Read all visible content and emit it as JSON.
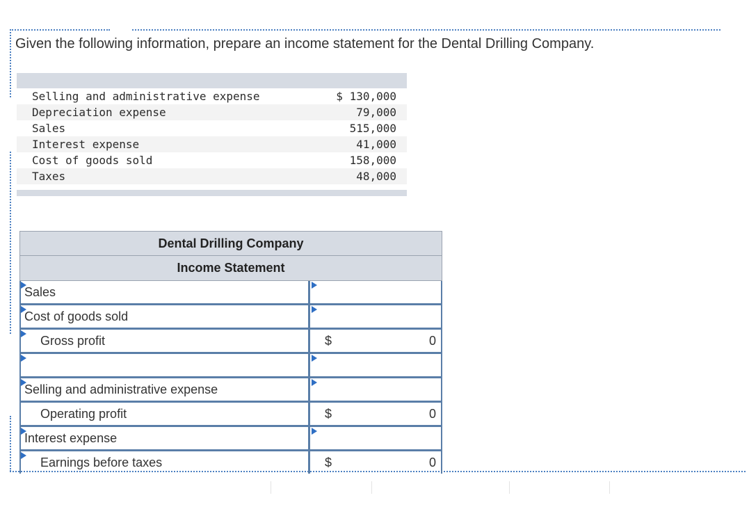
{
  "prompt": "Given the following information, prepare an income statement for the Dental Drilling Company.",
  "given_items": [
    {
      "label": "Selling and administrative expense",
      "value": "$ 130,000"
    },
    {
      "label": "Depreciation expense",
      "value": "79,000"
    },
    {
      "label": "Sales",
      "value": "515,000"
    },
    {
      "label": "Interest expense",
      "value": "41,000"
    },
    {
      "label": "Cost of goods sold",
      "value": "158,000"
    },
    {
      "label": "Taxes",
      "value": "48,000"
    }
  ],
  "statement": {
    "company": "Dental Drilling Company",
    "title": "Income Statement",
    "rows": [
      {
        "label": "Sales",
        "dollar": "",
        "value": ""
      },
      {
        "label": "Cost of goods sold",
        "dollar": "",
        "value": ""
      },
      {
        "label": "Gross profit",
        "dollar": "$",
        "value": "0"
      },
      {
        "label": "",
        "dollar": "",
        "value": ""
      },
      {
        "label": "Selling and administrative expense",
        "dollar": "",
        "value": ""
      },
      {
        "label": "Operating profit",
        "dollar": "$",
        "value": "0"
      },
      {
        "label": "Interest expense",
        "dollar": "",
        "value": ""
      },
      {
        "label": "Earnings before taxes",
        "dollar": "$",
        "value": "0"
      }
    ]
  },
  "colors": {
    "accent": "#2f6fc4",
    "border": "#5a7ea8",
    "header_bg": "#d6dbe3"
  }
}
